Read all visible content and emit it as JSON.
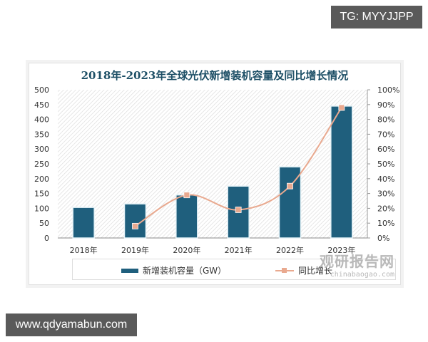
{
  "overlay": {
    "top_right_tag": "TG: MYYJJPP",
    "bottom_left_tag": "www.qdyamabun.com"
  },
  "watermark": {
    "name": "观研报告网",
    "url": "chinabaogao.com"
  },
  "chart_data": {
    "type": "bar",
    "title": "2018年-2023年全球光伏新增装机容量及同比增长情况",
    "categories": [
      "2018年",
      "2019年",
      "2020年",
      "2021年",
      "2022年",
      "2023年"
    ],
    "series": [
      {
        "name": "新增装机容量（GW）",
        "type": "bar",
        "axis": "left",
        "color": "#1f5f7d",
        "values": [
          103,
          115,
          145,
          175,
          240,
          445
        ]
      },
      {
        "name": "同比增长",
        "type": "line",
        "axis": "right",
        "color": "#e9a98f",
        "values": [
          null,
          8,
          29,
          19,
          35,
          88
        ]
      }
    ],
    "y_left": {
      "min": 0,
      "max": 500,
      "ticks": [
        "0",
        "50",
        "100",
        "150",
        "200",
        "250",
        "300",
        "350",
        "400",
        "450",
        "500"
      ]
    },
    "y_right": {
      "min": 0,
      "max": 100,
      "ticks": [
        "0%",
        "10%",
        "20%",
        "30%",
        "40%",
        "50%",
        "60%",
        "70%",
        "80%",
        "90%",
        "100%"
      ]
    },
    "xlabel": "",
    "ylabel": "",
    "grid": false,
    "plot_background": "diagonal-hatch",
    "legend_position": "bottom"
  }
}
